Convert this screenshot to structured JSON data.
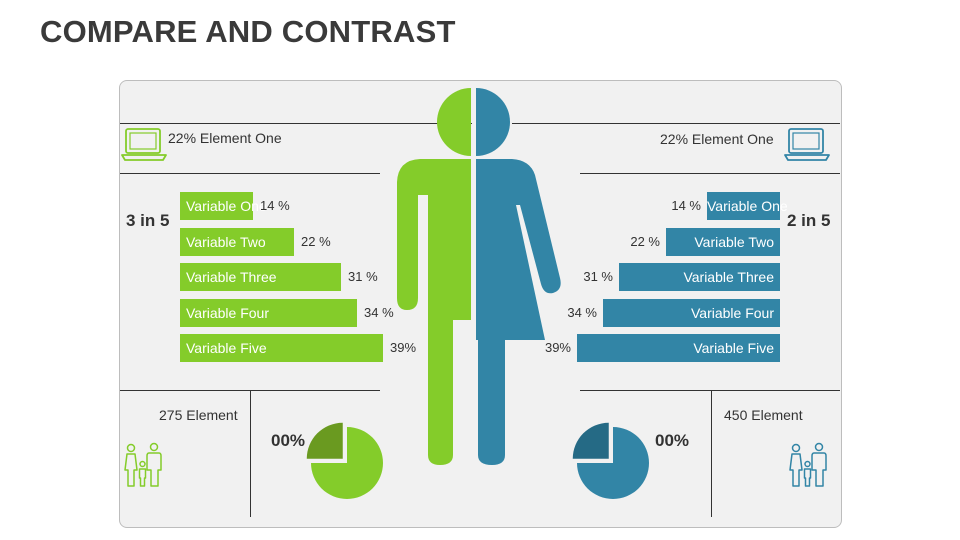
{
  "title": "COMPARE AND CONTRAST",
  "colors": {
    "green": "#84cc2a",
    "green_dark": "#6a9a20",
    "blue": "#3285a6",
    "blue_dark": "#256a85"
  },
  "left": {
    "top_label": "22% Element One",
    "ratio": "3 in 5",
    "bottom_label": "275 Element",
    "pie_value": "00%"
  },
  "right": {
    "top_label": "22% Element One",
    "ratio": "2 in 5",
    "bottom_label": "450 Element",
    "pie_value": "00%"
  },
  "chart_data": [
    {
      "type": "bar",
      "orientation": "horizontal",
      "series_name": "left",
      "categories": [
        "Variable One",
        "Variable Two",
        "Variable Three",
        "Variable Four",
        "Variable Five"
      ],
      "values": [
        14,
        22,
        31,
        34,
        39
      ],
      "value_labels": [
        "14 %",
        "22 %",
        "31 %",
        "34 %",
        "39%"
      ]
    },
    {
      "type": "bar",
      "orientation": "horizontal",
      "series_name": "right",
      "categories": [
        "Variable One",
        "Variable Two",
        "Variable Three",
        "Variable Four",
        "Variable Five"
      ],
      "values": [
        14,
        22,
        31,
        34,
        39
      ],
      "value_labels": [
        "14 %",
        "22 %",
        "31 %",
        "34 %",
        "39%"
      ]
    },
    {
      "type": "pie",
      "series_name": "left",
      "values": [
        75,
        25
      ]
    },
    {
      "type": "pie",
      "series_name": "right",
      "values": [
        75,
        25
      ]
    }
  ]
}
